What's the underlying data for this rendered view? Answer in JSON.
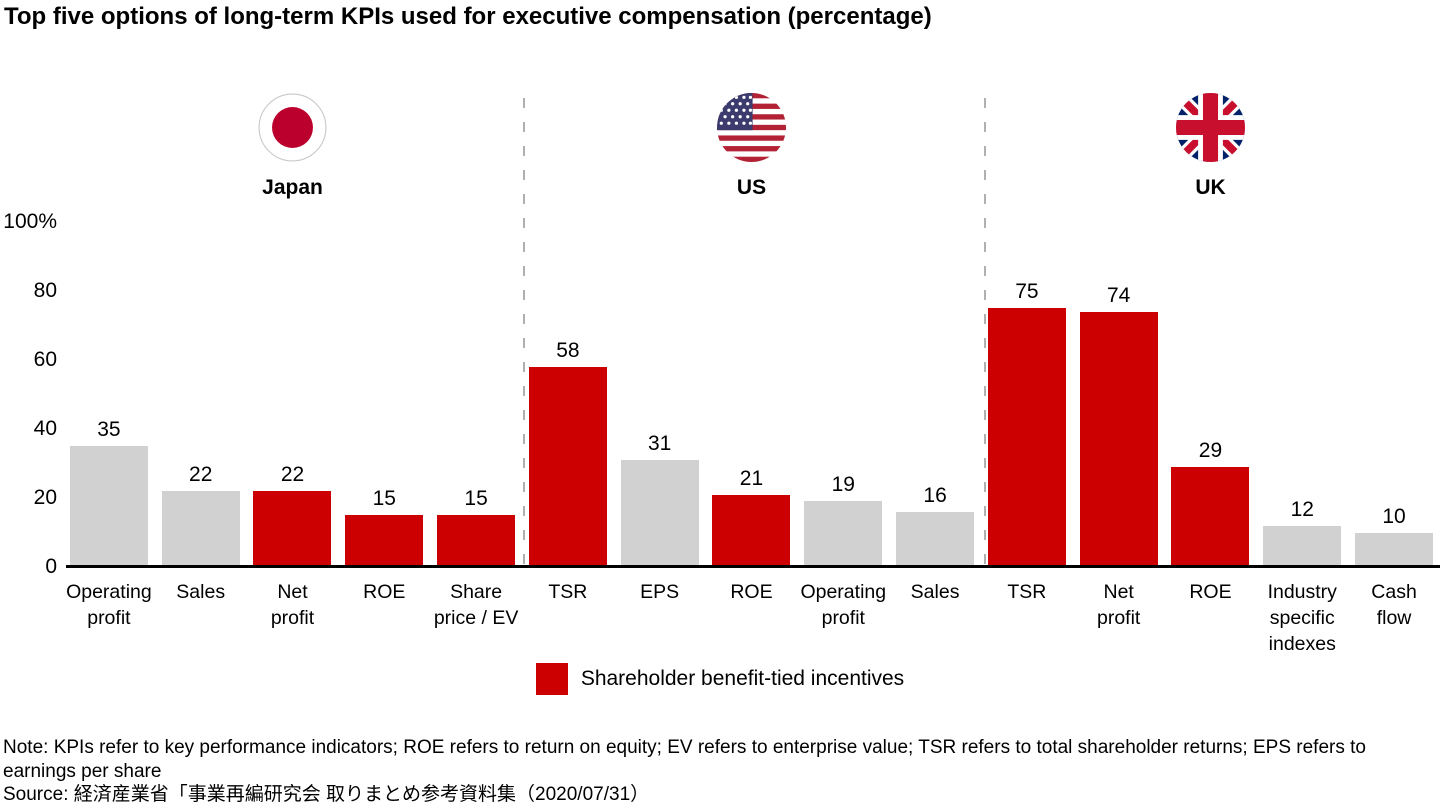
{
  "title": "Top five options of long-term KPIs used for executive compensation (percentage)",
  "note": "Note: KPIs refer to key performance indicators; ROE refers to return on equity; EV refers to enterprise value; TSR refers to total shareholder returns; EPS refers to earnings per share",
  "source": "Source: 経済産業省「事業再編研究会 取りまとめ参考資料集（2020/07/31）",
  "chart_data": {
    "type": "bar",
    "title": "Top five options of long-term KPIs used for executive compensation (percentage)",
    "unit": "%",
    "ylim": [
      0,
      100
    ],
    "y_ticks": [
      "100%",
      "80",
      "60",
      "40",
      "20",
      "0"
    ],
    "grid": false,
    "legend_position": "bottom-center",
    "bar_colors": {
      "highlight": "#cc0000",
      "default": "#d1d1d1"
    },
    "divider_color": "#b0b0b0",
    "legend": [
      {
        "label": "Shareholder benefit-tied incentives",
        "color": "#cc0000"
      }
    ],
    "groups": [
      {
        "country": "Japan",
        "flag_icon": "japan-flag-icon",
        "bars": [
          {
            "category": "Operating profit",
            "label_lines": [
              "Operating",
              "profit"
            ],
            "value": 35,
            "shareholder_tied": false
          },
          {
            "category": "Sales",
            "label_lines": [
              "Sales"
            ],
            "value": 22,
            "shareholder_tied": false
          },
          {
            "category": "Net profit",
            "label_lines": [
              "Net",
              "profit"
            ],
            "value": 22,
            "shareholder_tied": true
          },
          {
            "category": "ROE",
            "label_lines": [
              "ROE"
            ],
            "value": 15,
            "shareholder_tied": true
          },
          {
            "category": "Share price / EV",
            "label_lines": [
              "Share",
              "price / EV"
            ],
            "value": 15,
            "shareholder_tied": true
          }
        ]
      },
      {
        "country": "US",
        "flag_icon": "us-flag-icon",
        "bars": [
          {
            "category": "TSR",
            "label_lines": [
              "TSR"
            ],
            "value": 58,
            "shareholder_tied": true
          },
          {
            "category": "EPS",
            "label_lines": [
              "EPS"
            ],
            "value": 31,
            "shareholder_tied": false
          },
          {
            "category": "ROE",
            "label_lines": [
              "ROE"
            ],
            "value": 21,
            "shareholder_tied": true
          },
          {
            "category": "Operating profit",
            "label_lines": [
              "Operating",
              "profit"
            ],
            "value": 19,
            "shareholder_tied": false
          },
          {
            "category": "Sales",
            "label_lines": [
              "Sales"
            ],
            "value": 16,
            "shareholder_tied": false
          }
        ]
      },
      {
        "country": "UK",
        "flag_icon": "uk-flag-icon",
        "bars": [
          {
            "category": "TSR",
            "label_lines": [
              "TSR"
            ],
            "value": 75,
            "shareholder_tied": true
          },
          {
            "category": "Net profit",
            "label_lines": [
              "Net",
              "profit"
            ],
            "value": 74,
            "shareholder_tied": true
          },
          {
            "category": "ROE",
            "label_lines": [
              "ROE"
            ],
            "value": 29,
            "shareholder_tied": true
          },
          {
            "category": "Industry specific indexes",
            "label_lines": [
              "Industry",
              "specific",
              "indexes"
            ],
            "value": 12,
            "shareholder_tied": false
          },
          {
            "category": "Cash flow",
            "label_lines": [
              "Cash",
              "flow"
            ],
            "value": 10,
            "shareholder_tied": false
          }
        ]
      }
    ]
  }
}
